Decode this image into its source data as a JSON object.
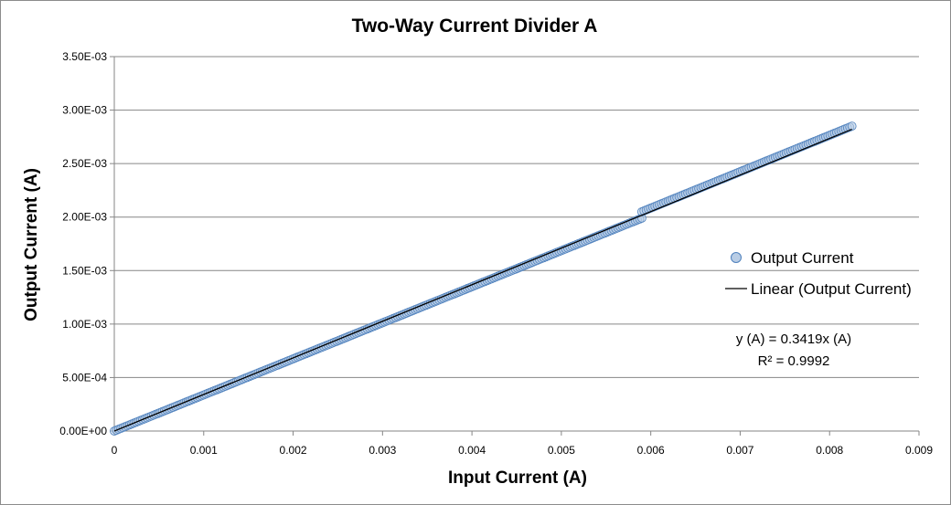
{
  "chart_data": {
    "type": "scatter",
    "title": "Two-Way Current Divider A",
    "xlabel": "Input Current (A)",
    "ylabel": "Output Current (A)",
    "xlim": [
      0,
      0.009
    ],
    "ylim": [
      0,
      0.0035
    ],
    "x_ticks": [
      "0",
      "0.001",
      "0.002",
      "0.003",
      "0.004",
      "0.005",
      "0.006",
      "0.007",
      "0.008",
      "0.009"
    ],
    "x_tick_values": [
      0,
      0.001,
      0.002,
      0.003,
      0.004,
      0.005,
      0.006,
      0.007,
      0.008,
      0.009
    ],
    "y_ticks": [
      "0.00E+00",
      "5.00E-04",
      "1.00E-03",
      "1.50E-03",
      "2.00E-03",
      "2.50E-03",
      "3.00E-03",
      "3.50E-03"
    ],
    "y_tick_values": [
      0,
      0.0005,
      0.001,
      0.0015,
      0.002,
      0.0025,
      0.003,
      0.0035
    ],
    "grid": "horizontal",
    "legend_position": "right",
    "series": [
      {
        "name": "Output Current",
        "marker": "circle",
        "color": "#b9cde5",
        "edge_color": "#4f81bd",
        "segments": [
          {
            "x_start": 0.0,
            "x_end": 0.0059,
            "y_start": 0.0,
            "y_end": 0.00199
          },
          {
            "x_start": 0.0059,
            "x_end": 0.00825,
            "y_start": 0.00205,
            "y_end": 0.00285
          }
        ],
        "point_count": 340
      },
      {
        "name": "Linear (Output Current)",
        "type": "line",
        "color": "#000000",
        "slope": 0.3419,
        "x_range": [
          0,
          0.00825
        ]
      }
    ],
    "annotations": {
      "equation": "y (A) = 0.3419x (A)",
      "r_squared": "R² = 0.9992"
    }
  }
}
